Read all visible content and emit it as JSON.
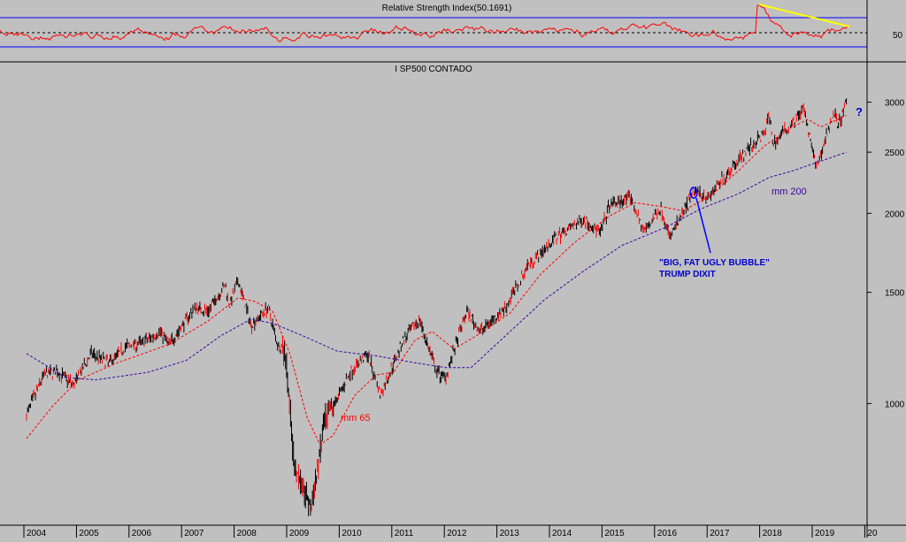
{
  "colors": {
    "background": "#c0c0c0",
    "rsi_line": "#ff0000",
    "rsi_band": "#0000ff",
    "rsi_trend": "#ffff00",
    "bar_up": "#000000",
    "bar_down": "#ff0000",
    "ma65": "#ff0000",
    "ma200": "#3c00a0",
    "annotation_text": "#0000cc",
    "annotation_arrow": "#0000ff"
  },
  "rsi_panel": {
    "title": "Relative Strength Index(50.1691)",
    "tick_label": "50"
  },
  "price_panel": {
    "title": "I SP500 CONTADO",
    "y_ticks": [
      "3000",
      "2500",
      "2000",
      "1500",
      "1000"
    ],
    "x_ticks": [
      "2004",
      "2005",
      "2006",
      "2007",
      "2008",
      "2009",
      "2010",
      "2011",
      "2012",
      "2013",
      "2014",
      "2015",
      "2016",
      "2017",
      "2018",
      "2019",
      "20"
    ]
  },
  "annotations": {
    "ma65_label": "mm 65",
    "ma200_label": "mm 200",
    "bubble_line1": "\"BIG, FAT UGLY BUBBLE\"",
    "bubble_line2": "TRUMP DIXIT",
    "question": "?"
  },
  "chart_data": {
    "type": "line",
    "title": "I SP500 CONTADO",
    "scale": "log",
    "ylim": [
      650,
      3300
    ],
    "x_range": [
      "2003-09",
      "2019-07"
    ],
    "series": [
      {
        "kind": "price",
        "points": [
          [
            "2003-09",
            960
          ],
          [
            "2004-01",
            1110
          ],
          [
            "2004-04",
            1125
          ],
          [
            "2004-08",
            1070
          ],
          [
            "2004-12",
            1200
          ],
          [
            "2005-04",
            1160
          ],
          [
            "2005-08",
            1230
          ],
          [
            "2005-12",
            1250
          ],
          [
            "2006-04",
            1300
          ],
          [
            "2006-06",
            1240
          ],
          [
            "2006-12",
            1420
          ],
          [
            "2007-03",
            1400
          ],
          [
            "2007-07",
            1540
          ],
          [
            "2007-08",
            1430
          ],
          [
            "2007-10",
            1565
          ],
          [
            "2008-01",
            1330
          ],
          [
            "2008-05",
            1420
          ],
          [
            "2008-07",
            1250
          ],
          [
            "2008-09",
            1200
          ],
          [
            "2008-11",
            800
          ],
          [
            "2009-03",
            680
          ],
          [
            "2009-06",
            930
          ],
          [
            "2009-12",
            1120
          ],
          [
            "2010-04",
            1200
          ],
          [
            "2010-07",
            1030
          ],
          [
            "2010-12",
            1250
          ],
          [
            "2011-04",
            1360
          ],
          [
            "2011-08",
            1120
          ],
          [
            "2011-10",
            1100
          ],
          [
            "2012-03",
            1400
          ],
          [
            "2012-06",
            1300
          ],
          [
            "2012-12",
            1420
          ],
          [
            "2013-05",
            1650
          ],
          [
            "2013-12",
            1840
          ],
          [
            "2014-06",
            1960
          ],
          [
            "2014-10",
            1860
          ],
          [
            "2014-12",
            2060
          ],
          [
            "2015-05",
            2120
          ],
          [
            "2015-08",
            1870
          ],
          [
            "2015-12",
            2040
          ],
          [
            "2016-02",
            1830
          ],
          [
            "2016-08",
            2180
          ],
          [
            "2016-11",
            2120
          ],
          [
            "2017-06",
            2440
          ],
          [
            "2017-12",
            2680
          ],
          [
            "2018-01",
            2870
          ],
          [
            "2018-02",
            2580
          ],
          [
            "2018-09",
            2930
          ],
          [
            "2018-12",
            2350
          ],
          [
            "2019-04",
            2900
          ],
          [
            "2019-05",
            2750
          ],
          [
            "2019-07",
            3000
          ]
        ]
      },
      {
        "name": "mm 65",
        "points": [
          [
            "2003-09",
            880
          ],
          [
            "2004-03",
            990
          ],
          [
            "2004-09",
            1090
          ],
          [
            "2005-06",
            1160
          ],
          [
            "2006-06",
            1240
          ],
          [
            "2007-03",
            1350
          ],
          [
            "2007-10",
            1470
          ],
          [
            "2008-02",
            1450
          ],
          [
            "2008-06",
            1400
          ],
          [
            "2008-10",
            1200
          ],
          [
            "2009-02",
            950
          ],
          [
            "2009-05",
            860
          ],
          [
            "2009-08",
            890
          ],
          [
            "2010-01",
            1030
          ],
          [
            "2010-06",
            1110
          ],
          [
            "2010-10",
            1120
          ],
          [
            "2011-03",
            1260
          ],
          [
            "2011-07",
            1300
          ],
          [
            "2011-12",
            1220
          ],
          [
            "2012-06",
            1290
          ],
          [
            "2013-01",
            1390
          ],
          [
            "2013-08",
            1600
          ],
          [
            "2014-04",
            1800
          ],
          [
            "2014-12",
            1980
          ],
          [
            "2015-06",
            2080
          ],
          [
            "2015-12",
            2050
          ],
          [
            "2016-05",
            2020
          ],
          [
            "2016-11",
            2120
          ],
          [
            "2017-06",
            2340
          ],
          [
            "2017-12",
            2560
          ],
          [
            "2018-06",
            2730
          ],
          [
            "2018-10",
            2820
          ],
          [
            "2019-01",
            2740
          ],
          [
            "2019-07",
            2860
          ]
        ]
      },
      {
        "name": "mm 200",
        "points": [
          [
            "2003-09",
            1200
          ],
          [
            "2004-06",
            1100
          ],
          [
            "2005-01",
            1090
          ],
          [
            "2006-01",
            1120
          ],
          [
            "2006-10",
            1170
          ],
          [
            "2007-06",
            1280
          ],
          [
            "2008-01",
            1360
          ],
          [
            "2008-06",
            1340
          ],
          [
            "2009-01",
            1280
          ],
          [
            "2009-09",
            1210
          ],
          [
            "2010-06",
            1190
          ],
          [
            "2011-03",
            1160
          ],
          [
            "2011-10",
            1140
          ],
          [
            "2012-04",
            1140
          ],
          [
            "2013-01",
            1300
          ],
          [
            "2013-09",
            1460
          ],
          [
            "2014-06",
            1620
          ],
          [
            "2015-03",
            1780
          ],
          [
            "2016-01",
            1900
          ],
          [
            "2016-09",
            2030
          ],
          [
            "2017-06",
            2150
          ],
          [
            "2018-01",
            2280
          ],
          [
            "2018-06",
            2330
          ],
          [
            "2019-07",
            2500
          ]
        ]
      }
    ],
    "rsi": {
      "mid": 50,
      "trendline": [
        [
          "2018-01",
          88
        ],
        [
          "2019-07",
          72
        ]
      ]
    }
  }
}
